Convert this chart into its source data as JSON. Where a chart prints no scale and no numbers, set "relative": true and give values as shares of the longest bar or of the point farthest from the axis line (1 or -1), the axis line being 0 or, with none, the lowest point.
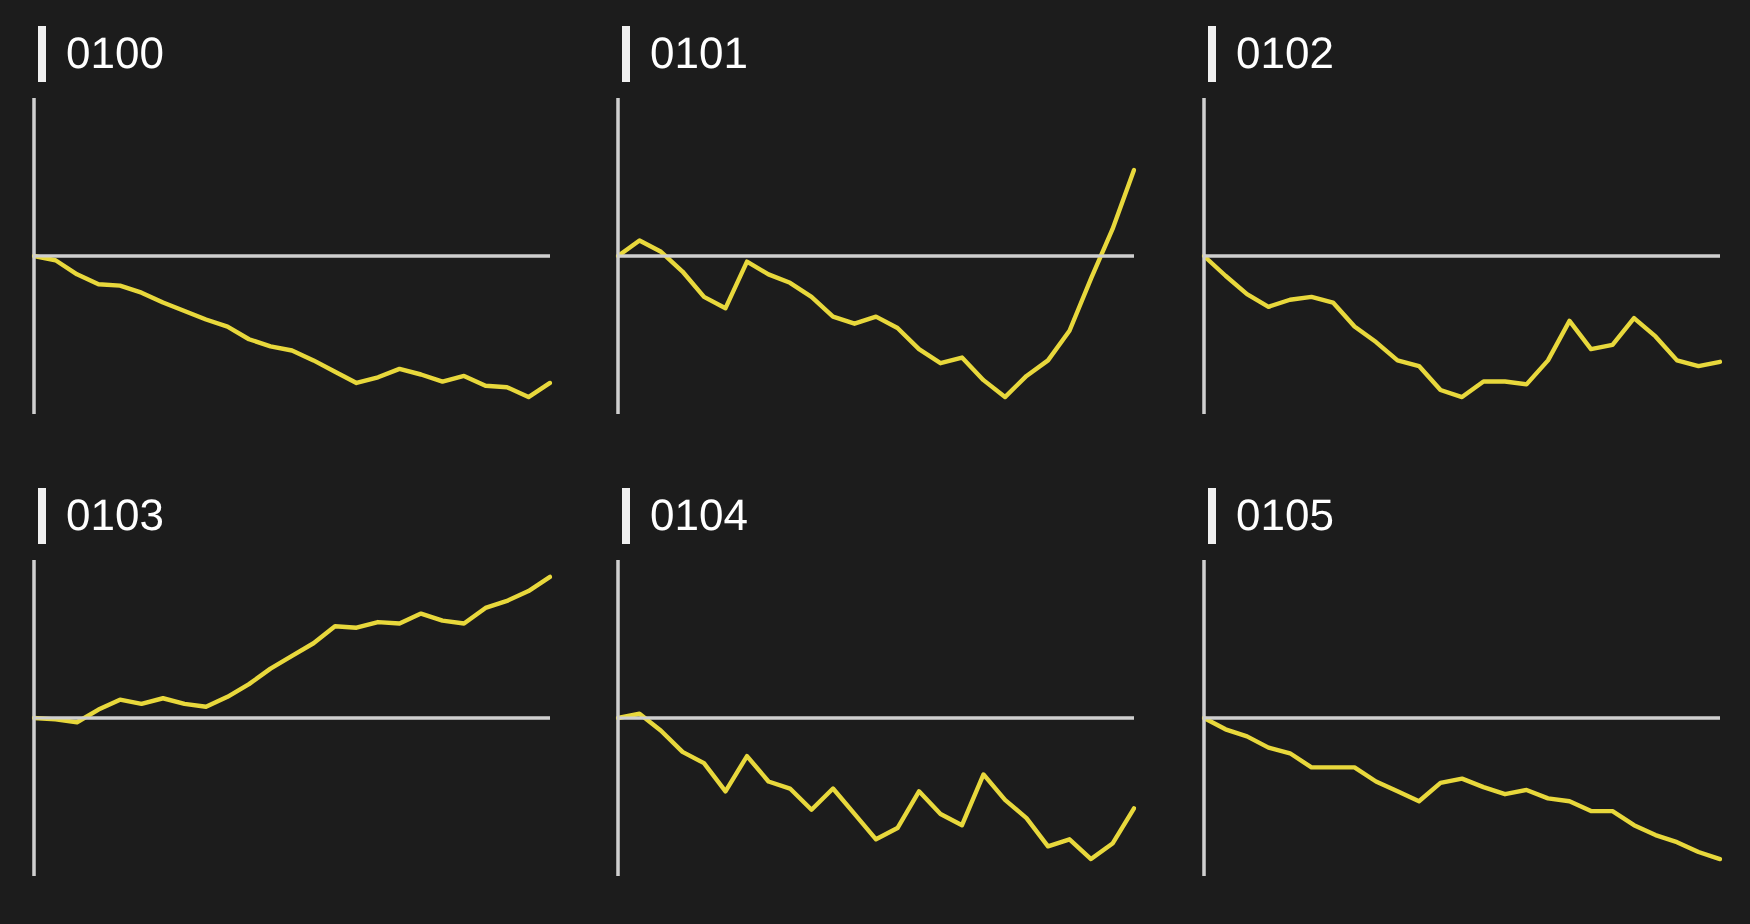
{
  "chart_data": [
    {
      "type": "line",
      "title": "0100",
      "relative": true,
      "marker": "none",
      "color": "#e8d83c",
      "categories": [
        null,
        null,
        null,
        null,
        null,
        null,
        null,
        null,
        null,
        null,
        null,
        null,
        null,
        null,
        null,
        null,
        null,
        null,
        null,
        null,
        null,
        null,
        null,
        null,
        null
      ],
      "values": [
        0,
        -0.03,
        -0.13,
        -0.2,
        -0.21,
        -0.26,
        -0.33,
        -0.39,
        -0.45,
        -0.5,
        -0.59,
        -0.64,
        -0.67,
        -0.74,
        -0.82,
        -0.9,
        -0.86,
        -0.8,
        -0.84,
        -0.89,
        -0.85,
        -0.92,
        -0.93,
        -1,
        -0.9
      ]
    },
    {
      "type": "line",
      "title": "0101",
      "relative": true,
      "marker": "none",
      "color": "#e8d83c",
      "categories": [
        null,
        null,
        null,
        null,
        null,
        null,
        null,
        null,
        null,
        null,
        null,
        null,
        null,
        null,
        null,
        null,
        null,
        null,
        null,
        null,
        null,
        null,
        null,
        null,
        null
      ],
      "values": [
        0,
        0.11,
        0.03,
        -0.11,
        -0.29,
        -0.37,
        -0.04,
        -0.13,
        -0.19,
        -0.29,
        -0.43,
        -0.48,
        -0.43,
        -0.51,
        -0.66,
        -0.76,
        -0.72,
        -0.88,
        -1,
        -0.85,
        -0.74,
        -0.53,
        -0.16,
        0.19,
        0.61
      ]
    },
    {
      "type": "line",
      "title": "0102",
      "relative": true,
      "marker": "none",
      "color": "#e8d83c",
      "categories": [
        null,
        null,
        null,
        null,
        null,
        null,
        null,
        null,
        null,
        null,
        null,
        null,
        null,
        null,
        null,
        null,
        null,
        null,
        null,
        null,
        null,
        null,
        null,
        null,
        null
      ],
      "values": [
        0,
        -0.14,
        -0.27,
        -0.36,
        -0.31,
        -0.29,
        -0.33,
        -0.5,
        -0.61,
        -0.74,
        -0.78,
        -0.95,
        -1,
        -0.89,
        -0.89,
        -0.91,
        -0.74,
        -0.46,
        -0.66,
        -0.63,
        -0.44,
        -0.57,
        -0.74,
        -0.78,
        -0.75
      ]
    },
    {
      "type": "line",
      "title": "0103",
      "relative": true,
      "marker": "none",
      "color": "#e8d83c",
      "categories": [
        null,
        null,
        null,
        null,
        null,
        null,
        null,
        null,
        null,
        null,
        null,
        null,
        null,
        null,
        null,
        null,
        null,
        null,
        null,
        null,
        null,
        null,
        null,
        null,
        null
      ],
      "values": [
        0,
        -0.01,
        -0.03,
        0.06,
        0.13,
        0.1,
        0.14,
        0.1,
        0.08,
        0.15,
        0.24,
        0.35,
        0.44,
        0.53,
        0.65,
        0.64,
        0.68,
        0.67,
        0.74,
        0.69,
        0.67,
        0.78,
        0.83,
        0.9,
        1
      ]
    },
    {
      "type": "line",
      "title": "0104",
      "relative": true,
      "marker": "none",
      "color": "#e8d83c",
      "categories": [
        null,
        null,
        null,
        null,
        null,
        null,
        null,
        null,
        null,
        null,
        null,
        null,
        null,
        null,
        null,
        null,
        null,
        null,
        null,
        null,
        null,
        null,
        null,
        null,
        null
      ],
      "values": [
        0,
        0.03,
        -0.09,
        -0.24,
        -0.32,
        -0.52,
        -0.27,
        -0.45,
        -0.5,
        -0.65,
        -0.5,
        -0.68,
        -0.86,
        -0.78,
        -0.52,
        -0.68,
        -0.76,
        -0.4,
        -0.58,
        -0.71,
        -0.91,
        -0.86,
        -1,
        -0.89,
        -0.64
      ]
    },
    {
      "type": "line",
      "title": "0105",
      "relative": true,
      "marker": "none",
      "color": "#e8d83c",
      "categories": [
        null,
        null,
        null,
        null,
        null,
        null,
        null,
        null,
        null,
        null,
        null,
        null,
        null,
        null,
        null,
        null,
        null,
        null,
        null,
        null,
        null,
        null,
        null,
        null,
        null
      ],
      "values": [
        0,
        -0.08,
        -0.13,
        -0.21,
        -0.25,
        -0.35,
        -0.35,
        -0.35,
        -0.45,
        -0.52,
        -0.59,
        -0.46,
        -0.43,
        -0.49,
        -0.54,
        -0.51,
        -0.57,
        -0.59,
        -0.66,
        -0.66,
        -0.76,
        -0.83,
        -0.88,
        -0.95,
        -1
      ]
    }
  ]
}
